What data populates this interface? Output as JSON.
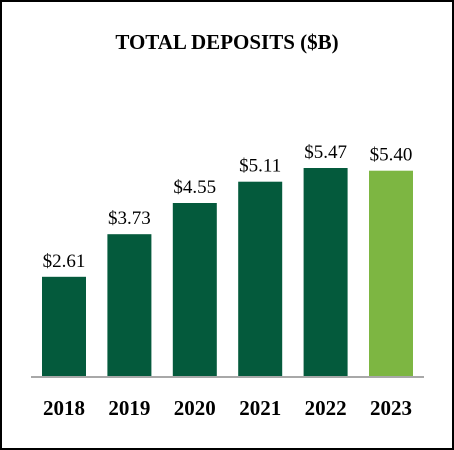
{
  "chart_data": {
    "type": "bar",
    "title": "TOTAL DEPOSITS ($B)",
    "categories": [
      "2018",
      "2019",
      "2020",
      "2021",
      "2022",
      "2023"
    ],
    "values": [
      2.61,
      3.73,
      4.55,
      5.11,
      5.47,
      5.4
    ],
    "value_labels": [
      "$2.61",
      "$3.73",
      "$4.55",
      "$5.11",
      "$5.47",
      "$5.40"
    ],
    "bar_colors": [
      "#045a3c",
      "#045a3c",
      "#045a3c",
      "#045a3c",
      "#045a3c",
      "#7db642"
    ],
    "ylim": [
      0,
      5.47
    ],
    "grid": false,
    "legend": "none"
  }
}
